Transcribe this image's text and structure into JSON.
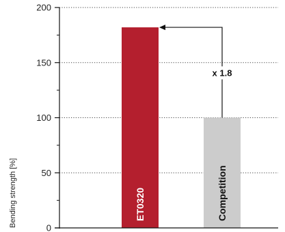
{
  "chart_data": {
    "type": "bar",
    "categories": [
      "ET0320",
      "Competition"
    ],
    "values": [
      182,
      100
    ],
    "colors": [
      "#b41f2e",
      "#cccccc"
    ],
    "label_colors": [
      "#ffffff",
      "#111111"
    ],
    "ylabel": "Bending strength [%]",
    "ylim": [
      0,
      200
    ],
    "yticks": [
      0,
      50,
      100,
      150,
      200
    ],
    "grid": true,
    "annotation": {
      "text": "x 1.8",
      "from_category": "Competition",
      "to_category": "ET0320"
    }
  }
}
